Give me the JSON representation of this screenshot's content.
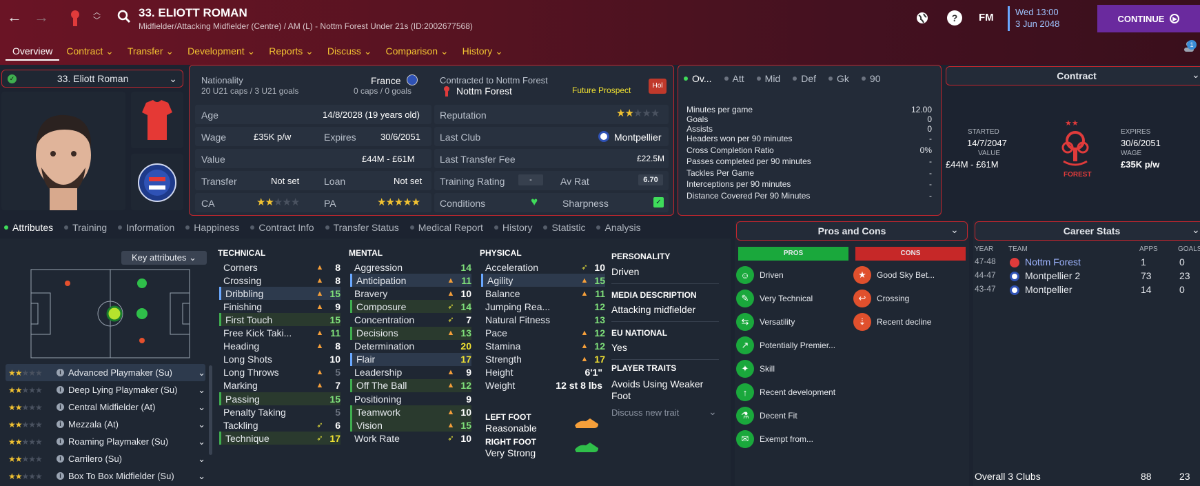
{
  "header": {
    "title": "33. ELIOTT ROMAN",
    "subtitle": "Midfielder/Attacking Midfielder (Centre) / AM (L) - Nottm Forest Under 21s (ID:2002677568)",
    "date_line1": "Wed 13:00",
    "date_line2": "3 Jun 2048",
    "continue": "CONTINUE",
    "fm": "FM",
    "help": "?",
    "notif": "1"
  },
  "tabs": [
    {
      "label": "Overview",
      "active": true
    },
    {
      "label": "Contract ⌄"
    },
    {
      "label": "Transfer ⌄"
    },
    {
      "label": "Development ⌄"
    },
    {
      "label": "Reports ⌄"
    },
    {
      "label": "Discuss ⌄"
    },
    {
      "label": "Comparison ⌄"
    },
    {
      "label": "History ⌄"
    }
  ],
  "player_select": "33. Eliott Roman",
  "info": {
    "nationality_label": "Nationality",
    "nationality": "France",
    "caps": "20 U21 caps / 3 U21 goals",
    "senior_caps": "0 caps / 0 goals",
    "contracted_label": "Contracted to Nottm Forest",
    "club": "Nottm Forest",
    "future": "Future Prospect",
    "hol": "Hol",
    "age_label": "Age",
    "age": "14/8/2028 (19 years old)",
    "wage_label": "Wage",
    "wage": "£35K p/w",
    "expires_label": "Expires",
    "expires": "30/6/2051",
    "value_label": "Value",
    "value": "£44M - £61M",
    "transfer_label": "Transfer",
    "transfer": "Not set",
    "loan_label": "Loan",
    "loan": "Not set",
    "ca_label": "CA",
    "pa_label": "PA",
    "ca_stars": 2,
    "pa_stars": 5,
    "rep_label": "Reputation",
    "rep_stars": 2,
    "lastclub_label": "Last Club",
    "lastclub": "Montpellier",
    "fee_label": "Last Transfer Fee",
    "fee": "£22.5M",
    "training_label": "Training Rating",
    "training": "-",
    "avrat_label": "Av Rat",
    "avrat": "6.70",
    "cond_label": "Conditions",
    "sharp_label": "Sharpness"
  },
  "stats_tabs": [
    "Ov...",
    "Att",
    "Mid",
    "Def",
    "Gk",
    "90"
  ],
  "stats": [
    {
      "k": "Minutes per game",
      "v": "12.00"
    },
    {
      "k": "Goals",
      "v": "0"
    },
    {
      "k": "Assists",
      "v": "0"
    },
    {
      "k": "Headers won per 90 minutes",
      "v": "-"
    },
    {
      "k": "Cross Completion Ratio",
      "v": "0%"
    },
    {
      "k": "Passes completed per 90 minutes",
      "v": "-"
    },
    {
      "k": "Tackles Per Game",
      "v": "-"
    },
    {
      "k": "Interceptions per 90 minutes",
      "v": "-"
    },
    {
      "k": "Distance Covered Per 90 Minutes",
      "v": "-"
    }
  ],
  "contract": {
    "title": "Contract",
    "started_label": "STARTED",
    "started": "14/7/2047",
    "value_label": "VALUE",
    "value": "£44M - £61M",
    "expires_label": "EXPIRES",
    "expires": "30/6/2051",
    "wage_label": "WAGE",
    "wage": "£35K p/w",
    "crest_text": "FOREST"
  },
  "subtabs": [
    "Attributes",
    "Training",
    "Information",
    "Happiness",
    "Contract Info",
    "Transfer Status",
    "Medical Report",
    "History",
    "Statistic",
    "Analysis"
  ],
  "key_attr": "Key attributes ⌄",
  "roles": [
    {
      "name": "Advanced Playmaker (Su)",
      "stars": 2
    },
    {
      "name": "Deep Lying Playmaker (Su)",
      "stars": 2
    },
    {
      "name": "Central Midfielder (At)",
      "stars": 2
    },
    {
      "name": "Mezzala (At)",
      "stars": 2
    },
    {
      "name": "Roaming Playmaker (Su)",
      "stars": 2
    },
    {
      "name": "Carrilero (Su)",
      "stars": 2
    },
    {
      "name": "Box To Box Midfielder (Su)",
      "stars": 2
    }
  ],
  "technical_title": "TECHNICAL",
  "mental_title": "MENTAL",
  "physical_title": "PHYSICAL",
  "technical": [
    {
      "n": "Corners",
      "v": "8",
      "a": "up"
    },
    {
      "n": "Crossing",
      "v": "8",
      "a": "up"
    },
    {
      "n": "Dribbling",
      "v": "15",
      "a": "up",
      "h": "hl",
      "c": "#7fe07a"
    },
    {
      "n": "Finishing",
      "v": "9",
      "a": "up"
    },
    {
      "n": "First Touch",
      "v": "15",
      "a": "",
      "h": "gr",
      "c": "#7fe07a"
    },
    {
      "n": "Free Kick Taki...",
      "v": "11",
      "a": "up",
      "c": "#7fe07a"
    },
    {
      "n": "Heading",
      "v": "8",
      "a": "up"
    },
    {
      "n": "Long Shots",
      "v": "10",
      "a": ""
    },
    {
      "n": "Long Throws",
      "v": "5",
      "a": "up",
      "c": "#6c7380"
    },
    {
      "n": "Marking",
      "v": "7",
      "a": "up"
    },
    {
      "n": "Passing",
      "v": "15",
      "a": "",
      "h": "gr",
      "c": "#7fe07a"
    },
    {
      "n": "Penalty Taking",
      "v": "5",
      "a": "",
      "c": "#6c7380"
    },
    {
      "n": "Tackling",
      "v": "6",
      "a": "dn"
    },
    {
      "n": "Technique",
      "v": "17",
      "a": "dn",
      "h": "gr",
      "c": "#f1e232"
    }
  ],
  "mental": [
    {
      "n": "Aggression",
      "v": "14",
      "a": "",
      "c": "#7fe07a"
    },
    {
      "n": "Anticipation",
      "v": "11",
      "a": "up",
      "h": "hl",
      "c": "#7fe07a"
    },
    {
      "n": "Bravery",
      "v": "10",
      "a": "up"
    },
    {
      "n": "Composure",
      "v": "14",
      "a": "dn",
      "h": "gr",
      "c": "#7fe07a"
    },
    {
      "n": "Concentration",
      "v": "7",
      "a": "dn"
    },
    {
      "n": "Decisions",
      "v": "13",
      "a": "up",
      "h": "gr",
      "c": "#7fe07a"
    },
    {
      "n": "Determination",
      "v": "20",
      "a": "",
      "c": "#f1e232"
    },
    {
      "n": "Flair",
      "v": "17",
      "a": "",
      "h": "hl",
      "c": "#f1e232"
    },
    {
      "n": "Leadership",
      "v": "9",
      "a": "up"
    },
    {
      "n": "Off The Ball",
      "v": "12",
      "a": "up",
      "h": "gr",
      "c": "#7fe07a"
    },
    {
      "n": "Positioning",
      "v": "9",
      "a": ""
    },
    {
      "n": "Teamwork",
      "v": "10",
      "a": "up",
      "h": "gr"
    },
    {
      "n": "Vision",
      "v": "15",
      "a": "up",
      "h": "gr",
      "c": "#7fe07a"
    },
    {
      "n": "Work Rate",
      "v": "10",
      "a": "dn"
    }
  ],
  "physical": [
    {
      "n": "Acceleration",
      "v": "10",
      "a": "dn"
    },
    {
      "n": "Agility",
      "v": "15",
      "a": "up",
      "h": "hl",
      "c": "#7fe07a"
    },
    {
      "n": "Balance",
      "v": "11",
      "a": "up",
      "c": "#7fe07a"
    },
    {
      "n": "Jumping Rea...",
      "v": "12",
      "a": "",
      "c": "#7fe07a"
    },
    {
      "n": "Natural Fitness",
      "v": "13",
      "a": "",
      "c": "#7fe07a"
    },
    {
      "n": "Pace",
      "v": "12",
      "a": "up",
      "c": "#7fe07a"
    },
    {
      "n": "Stamina",
      "v": "12",
      "a": "up",
      "c": "#7fe07a"
    },
    {
      "n": "Strength",
      "v": "17",
      "a": "up",
      "c": "#f1e232"
    },
    {
      "n": "Height",
      "v": "6'1\"",
      "a": ""
    },
    {
      "n": "Weight",
      "v": "12 st 8 lbs",
      "a": ""
    }
  ],
  "feet": {
    "left_label": "LEFT FOOT",
    "left": "Reasonable",
    "right_label": "RIGHT FOOT",
    "right": "Very Strong"
  },
  "personality": {
    "p_label": "PERSONALITY",
    "p": "Driven",
    "m_label": "MEDIA DESCRIPTION",
    "m": "Attacking midfielder",
    "eu_label": "EU NATIONAL",
    "eu": "Yes",
    "traits_label": "PLAYER TRAITS",
    "trait": "Avoids Using Weaker Foot",
    "discuss": "Discuss new trait"
  },
  "proscons": {
    "title": "Pros and Cons",
    "pros_label": "PROS",
    "cons_label": "CONS",
    "pros": [
      "Driven",
      "Very Technical",
      "Versatility",
      "Potentially Premier...",
      "Skill",
      "Recent development",
      "Decent Fit",
      "Exempt from..."
    ],
    "cons": [
      "Good Sky Bet...",
      "Crossing",
      "Recent decline"
    ]
  },
  "career": {
    "title": "Career Stats",
    "h_year": "YEAR",
    "h_team": "TEAM",
    "h_apps": "APPS",
    "h_goals": "GOALS",
    "rows": [
      {
        "y": "47-48",
        "t": "Nottm Forest",
        "a": "1",
        "g": "0"
      },
      {
        "y": "44-47",
        "t": "Montpellier 2",
        "a": "73",
        "g": "23"
      },
      {
        "y": "43-47",
        "t": "Montpellier",
        "a": "14",
        "g": "0"
      }
    ],
    "total_label": "Overall 3 Clubs",
    "total_apps": "88",
    "total_goals": "23"
  }
}
